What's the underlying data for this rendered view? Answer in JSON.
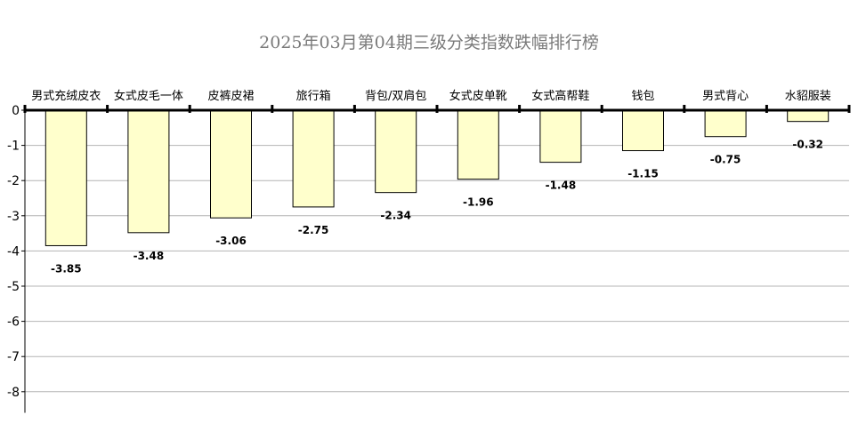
{
  "chart_data": {
    "type": "bar",
    "title": "2025年03月第04期三级分类指数跌幅排行榜",
    "categories": [
      "男式充绒皮衣",
      "女式皮毛一体",
      "皮裤皮裙",
      "旅行箱",
      "背包/双肩包",
      "女式皮单靴",
      "女式高帮鞋",
      "钱包",
      "男式背心",
      "水貂服装"
    ],
    "values": [
      -3.85,
      -3.48,
      -3.06,
      -2.75,
      -2.34,
      -1.96,
      -1.48,
      -1.15,
      -0.75,
      -0.32
    ],
    "data_labels": [
      "-3.85",
      "-3.48",
      "-3.06",
      "-2.75",
      "-2.34",
      "-1.96",
      "-1.48",
      "-1.15",
      "-0.75",
      "-0.32"
    ],
    "y_ticks": [
      0,
      -1,
      -2,
      -3,
      -4,
      -5,
      -6,
      -7,
      -8
    ],
    "y_tick_labels": [
      "0",
      "-1",
      "-2",
      "-3",
      "-4",
      "-5",
      "-6",
      "-7",
      "-8"
    ],
    "ylim": [
      -8.6,
      0
    ],
    "xlabel": "",
    "ylabel": "",
    "grid": true,
    "legend": "none",
    "category_axis_position": "top",
    "colors": {
      "bar_fill": "#ffffcc",
      "bar_stroke": "#000000",
      "grid": "#b4b4b4",
      "axis": "#000000",
      "title": "#7a7a7a"
    }
  }
}
